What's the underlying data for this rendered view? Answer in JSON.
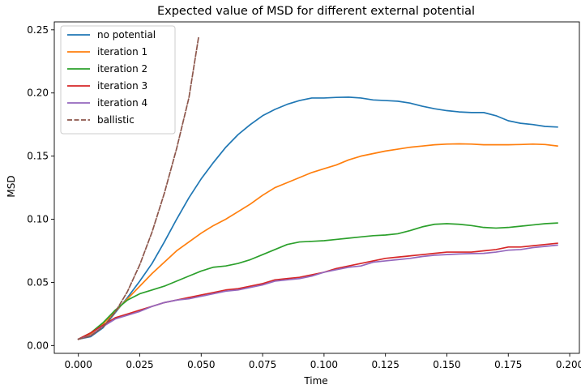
{
  "chart_data": {
    "type": "line",
    "title": "Expected value of MSD for different external potential",
    "xlabel": "Time",
    "ylabel": "MSD",
    "xlim": [
      -0.0098,
      0.2046
    ],
    "ylim": [
      -0.0062,
      0.2563
    ],
    "xticks": [
      0.0,
      0.025,
      0.05,
      0.075,
      0.1,
      0.125,
      0.15,
      0.175,
      0.2
    ],
    "xtick_labels": [
      "0.000",
      "0.025",
      "0.050",
      "0.075",
      "0.100",
      "0.125",
      "0.150",
      "0.175",
      "0.200"
    ],
    "yticks": [
      0.0,
      0.05,
      0.1,
      0.15,
      0.2,
      0.25
    ],
    "ytick_labels": [
      "0.00",
      "0.05",
      "0.10",
      "0.15",
      "0.20",
      "0.25"
    ],
    "grid": false,
    "legend_position": "top-left",
    "series": [
      {
        "name": "no potential",
        "color": "#1f77b4",
        "dash": "solid",
        "x": [
          0.0,
          0.005,
          0.01,
          0.015,
          0.02,
          0.025,
          0.03,
          0.035,
          0.04,
          0.045,
          0.05,
          0.055,
          0.06,
          0.065,
          0.07,
          0.075,
          0.08,
          0.085,
          0.09,
          0.095,
          0.1,
          0.105,
          0.11,
          0.115,
          0.12,
          0.125,
          0.13,
          0.135,
          0.14,
          0.145,
          0.15,
          0.155,
          0.16,
          0.165,
          0.17,
          0.175,
          0.18,
          0.185,
          0.19,
          0.195
        ],
        "y": [
          0.005,
          0.007,
          0.014,
          0.026,
          0.038,
          0.051,
          0.065,
          0.082,
          0.1,
          0.117,
          0.132,
          0.145,
          0.157,
          0.167,
          0.175,
          0.182,
          0.187,
          0.191,
          0.194,
          0.196,
          0.196,
          0.1965,
          0.1967,
          0.196,
          0.1945,
          0.194,
          0.1935,
          0.192,
          0.1895,
          0.1875,
          0.186,
          0.185,
          0.1845,
          0.1845,
          0.182,
          0.178,
          0.176,
          0.175,
          0.1735,
          0.173
        ]
      },
      {
        "name": "iteration 1",
        "color": "#ff7f0e",
        "dash": "solid",
        "x": [
          0.0,
          0.005,
          0.01,
          0.015,
          0.02,
          0.025,
          0.03,
          0.035,
          0.04,
          0.045,
          0.05,
          0.055,
          0.06,
          0.065,
          0.07,
          0.075,
          0.08,
          0.085,
          0.09,
          0.095,
          0.1,
          0.105,
          0.11,
          0.115,
          0.12,
          0.125,
          0.13,
          0.135,
          0.14,
          0.145,
          0.15,
          0.155,
          0.16,
          0.165,
          0.17,
          0.175,
          0.18,
          0.185,
          0.19,
          0.195
        ],
        "y": [
          0.005,
          0.009,
          0.017,
          0.027,
          0.037,
          0.047,
          0.057,
          0.066,
          0.075,
          0.082,
          0.089,
          0.095,
          0.1,
          0.106,
          0.112,
          0.119,
          0.125,
          0.129,
          0.133,
          0.137,
          0.14,
          0.143,
          0.147,
          0.15,
          0.152,
          0.154,
          0.1555,
          0.157,
          0.158,
          0.159,
          0.1595,
          0.1597,
          0.1595,
          0.159,
          0.159,
          0.159,
          0.1592,
          0.1595,
          0.1592,
          0.158
        ]
      },
      {
        "name": "iteration 2",
        "color": "#2ca02c",
        "dash": "solid",
        "x": [
          0.0,
          0.005,
          0.01,
          0.015,
          0.02,
          0.025,
          0.03,
          0.035,
          0.04,
          0.045,
          0.05,
          0.055,
          0.06,
          0.065,
          0.07,
          0.075,
          0.08,
          0.085,
          0.09,
          0.095,
          0.1,
          0.105,
          0.11,
          0.115,
          0.12,
          0.125,
          0.13,
          0.135,
          0.14,
          0.145,
          0.15,
          0.155,
          0.16,
          0.165,
          0.17,
          0.175,
          0.18,
          0.185,
          0.19,
          0.195
        ],
        "y": [
          0.005,
          0.01,
          0.018,
          0.028,
          0.036,
          0.041,
          0.044,
          0.047,
          0.051,
          0.055,
          0.059,
          0.062,
          0.063,
          0.065,
          0.068,
          0.072,
          0.076,
          0.08,
          0.082,
          0.0825,
          0.083,
          0.084,
          0.085,
          0.086,
          0.087,
          0.0875,
          0.0885,
          0.091,
          0.094,
          0.096,
          0.0965,
          0.096,
          0.095,
          0.0935,
          0.093,
          0.0935,
          0.0945,
          0.0955,
          0.0965,
          0.097
        ]
      },
      {
        "name": "iteration 3",
        "color": "#d62728",
        "dash": "solid",
        "x": [
          0.0,
          0.005,
          0.01,
          0.015,
          0.02,
          0.025,
          0.03,
          0.035,
          0.04,
          0.045,
          0.05,
          0.055,
          0.06,
          0.065,
          0.07,
          0.075,
          0.08,
          0.085,
          0.09,
          0.095,
          0.1,
          0.105,
          0.11,
          0.115,
          0.12,
          0.125,
          0.13,
          0.135,
          0.14,
          0.145,
          0.15,
          0.155,
          0.16,
          0.165,
          0.17,
          0.175,
          0.18,
          0.185,
          0.19,
          0.195
        ],
        "y": [
          0.005,
          0.01,
          0.016,
          0.022,
          0.025,
          0.028,
          0.031,
          0.034,
          0.036,
          0.038,
          0.04,
          0.042,
          0.044,
          0.045,
          0.047,
          0.049,
          0.052,
          0.053,
          0.054,
          0.056,
          0.058,
          0.061,
          0.063,
          0.065,
          0.067,
          0.069,
          0.07,
          0.071,
          0.072,
          0.073,
          0.074,
          0.074,
          0.074,
          0.075,
          0.076,
          0.078,
          0.078,
          0.079,
          0.08,
          0.081
        ]
      },
      {
        "name": "iteration 4",
        "color": "#9467bd",
        "dash": "solid",
        "x": [
          0.0,
          0.005,
          0.01,
          0.015,
          0.02,
          0.025,
          0.03,
          0.035,
          0.04,
          0.045,
          0.05,
          0.055,
          0.06,
          0.065,
          0.07,
          0.075,
          0.08,
          0.085,
          0.09,
          0.095,
          0.1,
          0.105,
          0.11,
          0.115,
          0.12,
          0.125,
          0.13,
          0.135,
          0.14,
          0.145,
          0.15,
          0.155,
          0.16,
          0.165,
          0.17,
          0.175,
          0.18,
          0.185,
          0.19,
          0.195
        ],
        "y": [
          0.005,
          0.008,
          0.015,
          0.021,
          0.024,
          0.027,
          0.031,
          0.034,
          0.036,
          0.037,
          0.039,
          0.041,
          0.043,
          0.044,
          0.046,
          0.048,
          0.051,
          0.052,
          0.053,
          0.055,
          0.058,
          0.06,
          0.062,
          0.063,
          0.066,
          0.067,
          0.068,
          0.069,
          0.0705,
          0.0715,
          0.072,
          0.0725,
          0.0728,
          0.073,
          0.074,
          0.0755,
          0.076,
          0.0775,
          0.0785,
          0.0795
        ]
      },
      {
        "name": "ballistic",
        "color": "#8c564b",
        "dash": "dashed",
        "x": [
          0.0,
          0.005,
          0.01,
          0.015,
          0.02,
          0.025,
          0.03,
          0.035,
          0.04,
          0.045,
          0.049
        ],
        "y": [
          0.005,
          0.0075,
          0.0146,
          0.0264,
          0.0428,
          0.064,
          0.0899,
          0.1206,
          0.156,
          0.1962,
          0.245
        ]
      }
    ]
  }
}
